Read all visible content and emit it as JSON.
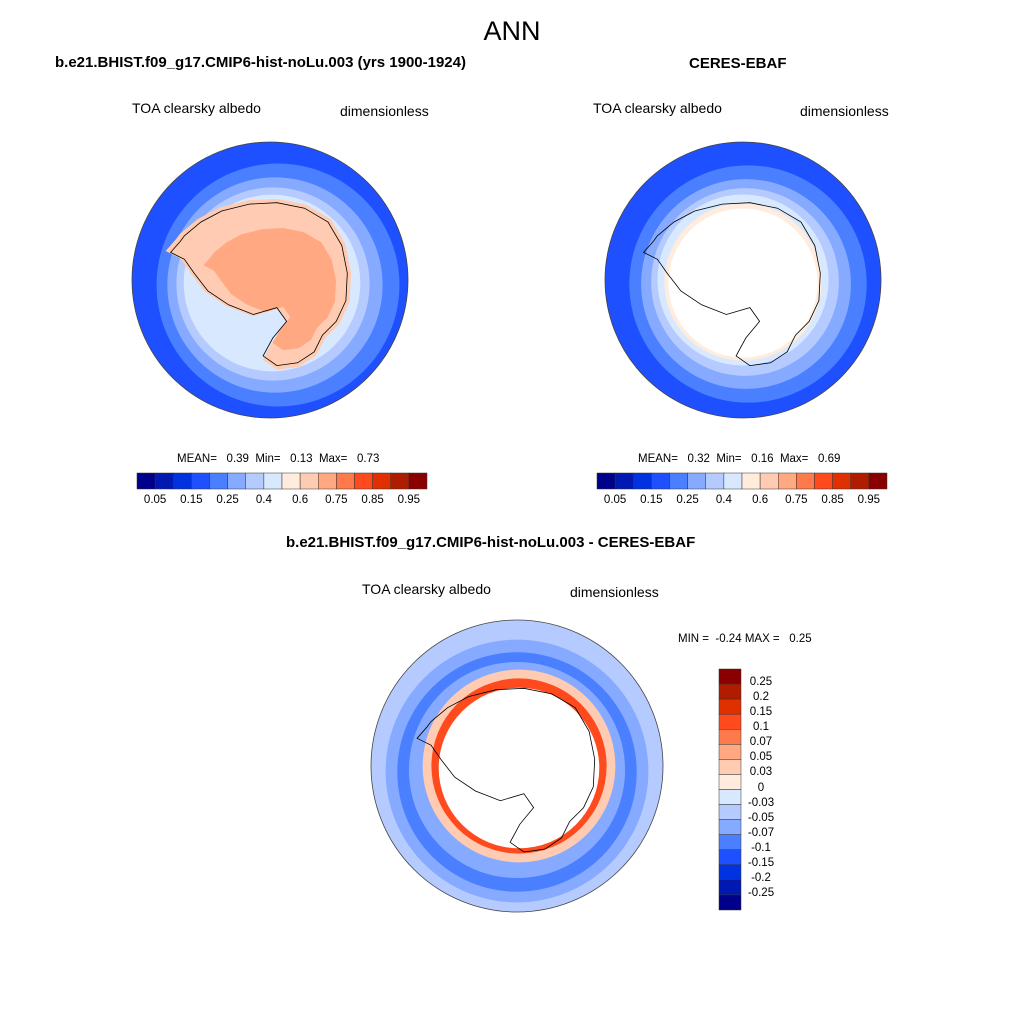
{
  "title": "ANN",
  "colors_abs": [
    "#00008a",
    "#0019b0",
    "#0032e0",
    "#1e50ff",
    "#4a80ff",
    "#86aaff",
    "#b5cbff",
    "#d8e9ff",
    "#ffecdc",
    "#ffcbb2",
    "#ffa882",
    "#ff7a4a",
    "#ff4a1e",
    "#e03000",
    "#b01c00",
    "#8a0000"
  ],
  "colors_diff": [
    "#00008a",
    "#0019b0",
    "#0032e0",
    "#1e50ff",
    "#4a80ff",
    "#86aaff",
    "#b5cbff",
    "#d8e9ff",
    "#ffecdc",
    "#ffcbb2",
    "#ffa882",
    "#ff7a4a",
    "#ff4a1e",
    "#e03000",
    "#b01c00",
    "#8a0000"
  ],
  "panels": [
    {
      "title": "b.e21.BHIST.f09_g17.CMIP6-hist-noLu.003 (yrs 1900-1924)",
      "variable": "TOA clearsky albedo",
      "units": "dimensionless",
      "stats": {
        "mean_label": "MEAN=",
        "mean": "0.39",
        "min_label": "Min=",
        "min": "0.13",
        "max_label": "Max=",
        "max": "0.73"
      },
      "colorbar_labels": [
        "0.05",
        "0.15",
        "0.25",
        "0.4",
        "0.6",
        "0.75",
        "0.85",
        "0.95"
      ]
    },
    {
      "title": "CERES-EBAF",
      "variable": "TOA clearsky albedo",
      "units": "dimensionless",
      "stats": {
        "mean_label": "MEAN=",
        "mean": "0.32",
        "min_label": "Min=",
        "min": "0.16",
        "max_label": "Max=",
        "max": "0.69"
      },
      "colorbar_labels": [
        "0.05",
        "0.15",
        "0.25",
        "0.4",
        "0.6",
        "0.75",
        "0.85",
        "0.95"
      ]
    },
    {
      "title": "b.e21.BHIST.f09_g17.CMIP6-hist-noLu.003 - CERES-EBAF",
      "variable": "TOA clearsky albedo",
      "units": "dimensionless",
      "stats": {
        "min_label": "MIN =",
        "min": "-0.24",
        "max_label": "MAX =",
        "max": "0.25"
      },
      "colorbar_labels": [
        "0.25",
        "0.2",
        "0.15",
        "0.1",
        "0.07",
        "0.05",
        "0.03",
        "0",
        "-0.03",
        "-0.05",
        "-0.07",
        "-0.1",
        "-0.15",
        "-0.2",
        "-0.25"
      ]
    }
  ]
}
